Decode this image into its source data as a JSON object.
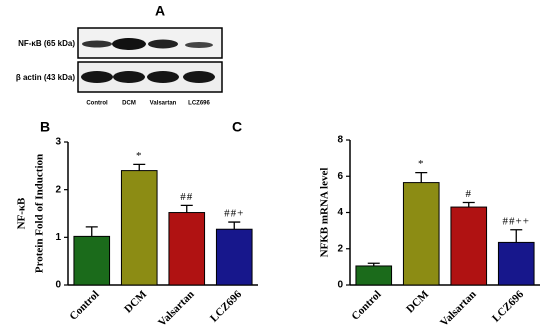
{
  "panel_a": {
    "letter": "A",
    "rows": [
      "NF-κB (65 kDa)",
      "β actin (43 kDa)"
    ],
    "lanes": [
      "Control",
      "DCM",
      "Valsartan",
      "LCZ696"
    ]
  },
  "chart_data": [
    {
      "type": "bar",
      "letter": "B",
      "ylabel": [
        "NF-κB",
        "Protein Fold of Induction"
      ],
      "categories": [
        "Control",
        "DCM",
        "Valsartan",
        "LCZ696"
      ],
      "values": [
        1.02,
        2.4,
        1.52,
        1.17
      ],
      "errors": [
        0.2,
        0.13,
        0.15,
        0.15
      ],
      "annotations": [
        null,
        "*",
        "##",
        "##+"
      ],
      "colors": [
        "#1b6b1b",
        "#8c8c14",
        "#b01212",
        "#17178c"
      ],
      "ylim": [
        0,
        3
      ],
      "yticks": [
        0,
        1,
        2,
        3
      ]
    },
    {
      "type": "bar",
      "letter": "C",
      "ylabel": [
        "NFKB mRNA level"
      ],
      "categories": [
        "Control",
        "DCM",
        "Valsartan",
        "LCZ696"
      ],
      "values": [
        1.05,
        5.65,
        4.3,
        2.35
      ],
      "errors": [
        0.15,
        0.55,
        0.25,
        0.7
      ],
      "annotations": [
        null,
        "*",
        "#",
        "##++"
      ],
      "colors": [
        "#1b6b1b",
        "#8c8c14",
        "#b01212",
        "#17178c"
      ],
      "ylim": [
        0,
        8
      ],
      "yticks": [
        0,
        2,
        4,
        6,
        8
      ]
    }
  ]
}
